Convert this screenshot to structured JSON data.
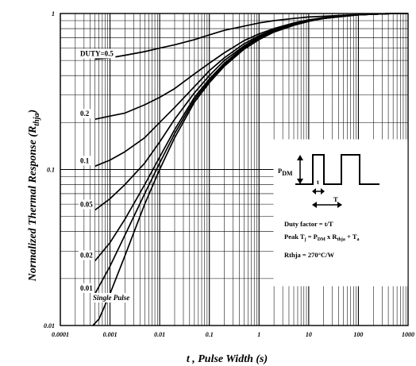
{
  "chart_data": {
    "type": "line",
    "title": "",
    "xlabel": "t , Pulse Width (s)",
    "ylabel": "Normalized Thermal Response (R",
    "ylabel_sub": "thja",
    "ylabel_close": ")",
    "xscale": "log",
    "yscale": "log",
    "xlim": [
      0.0001,
      1000
    ],
    "ylim": [
      0.01,
      1
    ],
    "grid": true,
    "x_ticks": [
      "0.0001",
      "0.001",
      "0.01",
      "0.1",
      "1",
      "10",
      "100",
      "1000"
    ],
    "y_ticks": [
      "0.01",
      "0.1",
      "1"
    ],
    "series": [
      {
        "name": "DUTY=0.5",
        "x": [
          0.0005,
          0.001,
          0.002,
          0.005,
          0.01,
          0.02,
          0.05,
          0.1,
          0.2,
          0.5,
          1,
          2,
          5,
          10,
          20,
          50,
          100,
          200,
          500,
          1000
        ],
        "y": [
          0.51,
          0.52,
          0.54,
          0.57,
          0.6,
          0.63,
          0.68,
          0.73,
          0.78,
          0.83,
          0.87,
          0.9,
          0.93,
          0.95,
          0.96,
          0.975,
          0.985,
          0.99,
          1.0,
          1.0
        ]
      },
      {
        "name": "0.2",
        "x": [
          0.0005,
          0.001,
          0.002,
          0.005,
          0.01,
          0.02,
          0.05,
          0.1,
          0.2,
          0.5,
          1,
          2,
          5,
          10,
          20,
          50,
          100,
          200,
          500,
          1000
        ],
        "y": [
          0.21,
          0.22,
          0.23,
          0.26,
          0.29,
          0.33,
          0.41,
          0.48,
          0.56,
          0.67,
          0.74,
          0.8,
          0.87,
          0.91,
          0.94,
          0.97,
          0.98,
          0.99,
          1.0,
          1.0
        ]
      },
      {
        "name": "0.1",
        "x": [
          0.0005,
          0.001,
          0.002,
          0.005,
          0.01,
          0.02,
          0.05,
          0.1,
          0.2,
          0.5,
          1,
          2,
          5,
          10,
          20,
          50,
          100,
          200,
          500,
          1000
        ],
        "y": [
          0.105,
          0.115,
          0.13,
          0.16,
          0.2,
          0.25,
          0.34,
          0.43,
          0.52,
          0.64,
          0.72,
          0.79,
          0.86,
          0.9,
          0.93,
          0.96,
          0.98,
          0.99,
          1.0,
          1.0
        ]
      },
      {
        "name": "0.05",
        "x": [
          0.0005,
          0.001,
          0.002,
          0.005,
          0.01,
          0.02,
          0.05,
          0.1,
          0.2,
          0.5,
          1,
          2,
          5,
          10,
          20,
          50,
          100,
          200,
          500,
          1000
        ],
        "y": [
          0.055,
          0.065,
          0.08,
          0.11,
          0.15,
          0.21,
          0.31,
          0.4,
          0.5,
          0.62,
          0.71,
          0.78,
          0.86,
          0.9,
          0.93,
          0.96,
          0.98,
          0.99,
          1.0,
          1.0
        ]
      },
      {
        "name": "0.02",
        "x": [
          0.0005,
          0.001,
          0.002,
          0.005,
          0.01,
          0.02,
          0.05,
          0.1,
          0.2,
          0.5,
          1,
          2,
          5,
          10,
          20,
          50,
          100,
          200,
          500,
          1000
        ],
        "y": [
          0.026,
          0.034,
          0.048,
          0.08,
          0.12,
          0.18,
          0.29,
          0.38,
          0.48,
          0.61,
          0.7,
          0.78,
          0.85,
          0.9,
          0.93,
          0.96,
          0.98,
          0.99,
          1.0,
          1.0
        ]
      },
      {
        "name": "0.01",
        "x": [
          0.0005,
          0.001,
          0.002,
          0.005,
          0.01,
          0.02,
          0.05,
          0.1,
          0.2,
          0.5,
          1,
          2,
          5,
          10,
          20,
          50,
          100,
          200,
          500,
          1000
        ],
        "y": [
          0.016,
          0.024,
          0.038,
          0.07,
          0.11,
          0.17,
          0.28,
          0.37,
          0.47,
          0.6,
          0.69,
          0.77,
          0.85,
          0.9,
          0.93,
          0.96,
          0.98,
          0.99,
          1.0,
          1.0
        ]
      },
      {
        "name": "Single Pulse",
        "x": [
          0.00045,
          0.0006,
          0.001,
          0.002,
          0.005,
          0.01,
          0.02,
          0.05,
          0.1,
          0.2,
          0.5,
          1,
          2,
          5,
          10,
          20,
          50,
          100,
          200,
          500,
          1000
        ],
        "y": [
          0.01,
          0.011,
          0.016,
          0.028,
          0.06,
          0.1,
          0.16,
          0.27,
          0.36,
          0.46,
          0.59,
          0.68,
          0.76,
          0.84,
          0.89,
          0.93,
          0.96,
          0.98,
          0.99,
          1.0,
          1.0
        ]
      }
    ],
    "inset": {
      "pdm_main": "P",
      "pdm_sub": "DM",
      "t_label": "t",
      "T_label": "T",
      "duty_text": "Duty factor = t/T",
      "peak_parts": [
        "Peak T",
        "j",
        " = P",
        "DM",
        " x R",
        "thja",
        " + T",
        "a"
      ],
      "rth_text": "Rthja = 270°C/W"
    }
  }
}
